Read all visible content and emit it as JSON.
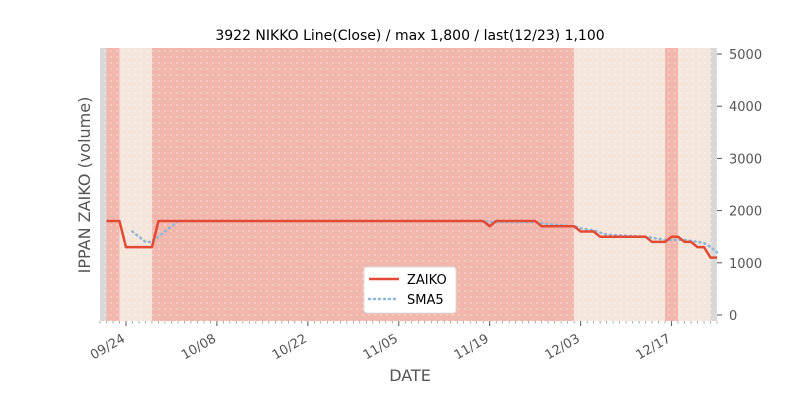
{
  "chart_data": {
    "type": "line",
    "title": "3922 NIKKO Line(Close) / max 1,800 / last(12/23) 1,100",
    "xlabel": "DATE",
    "ylabel": "IPPAN ZAIKO (volume)",
    "ylim": [
      0,
      5000
    ],
    "yticks": [
      "0",
      "1000",
      "2000",
      "3000",
      "4000",
      "5000"
    ],
    "y_axis_side": "right",
    "x_range": [
      "09/20",
      "12/24"
    ],
    "xticks": [
      "09/24",
      "10/08",
      "10/22",
      "11/05",
      "11/19",
      "12/03",
      "12/17"
    ],
    "grid": false,
    "legend_position": "bottom-center",
    "colors": {
      "zaiko": "#e24a33",
      "sma5": "#8eb6d9",
      "band_strong": "#f2b7ac",
      "band_light": "#f5e6dc",
      "band_gray": "#d8d8d8"
    },
    "series": [
      {
        "name": "ZAIKO",
        "style": "solid",
        "points": [
          [
            "09/21",
            1800
          ],
          [
            "09/23",
            1800
          ],
          [
            "09/24",
            1300
          ],
          [
            "09/25",
            1300
          ],
          [
            "09/26",
            1300
          ],
          [
            "09/27",
            1300
          ],
          [
            "09/28",
            1300
          ],
          [
            "09/29",
            1800
          ],
          [
            "10/01",
            1800
          ],
          [
            "10/15",
            1800
          ],
          [
            "11/01",
            1800
          ],
          [
            "11/15",
            1800
          ],
          [
            "11/18",
            1800
          ],
          [
            "11/19",
            1700
          ],
          [
            "11/20",
            1800
          ],
          [
            "11/26",
            1800
          ],
          [
            "11/27",
            1700
          ],
          [
            "11/28",
            1700
          ],
          [
            "12/02",
            1700
          ],
          [
            "12/03",
            1600
          ],
          [
            "12/05",
            1600
          ],
          [
            "12/06",
            1500
          ],
          [
            "12/07",
            1500
          ],
          [
            "12/13",
            1500
          ],
          [
            "12/14",
            1400
          ],
          [
            "12/15",
            1400
          ],
          [
            "12/16",
            1400
          ],
          [
            "12/17",
            1500
          ],
          [
            "12/18",
            1500
          ],
          [
            "12/19",
            1400
          ],
          [
            "12/20",
            1400
          ],
          [
            "12/21",
            1300
          ],
          [
            "12/22",
            1300
          ],
          [
            "12/23",
            1100
          ],
          [
            "12/24",
            1100
          ]
        ]
      },
      {
        "name": "SMA5",
        "style": "dotted",
        "points": [
          [
            "09/25",
            1600
          ],
          [
            "09/26",
            1500
          ],
          [
            "09/27",
            1400
          ],
          [
            "09/28",
            1400
          ],
          [
            "09/29",
            1500
          ],
          [
            "09/30",
            1600
          ],
          [
            "10/01",
            1700
          ],
          [
            "10/02",
            1800
          ],
          [
            "10/15",
            1800
          ],
          [
            "11/01",
            1800
          ],
          [
            "11/18",
            1800
          ],
          [
            "11/19",
            1780
          ],
          [
            "11/26",
            1780
          ],
          [
            "11/27",
            1760
          ],
          [
            "11/28",
            1740
          ],
          [
            "12/02",
            1700
          ],
          [
            "12/03",
            1660
          ],
          [
            "12/05",
            1620
          ],
          [
            "12/06",
            1580
          ],
          [
            "12/07",
            1540
          ],
          [
            "12/13",
            1500
          ],
          [
            "12/14",
            1480
          ],
          [
            "12/15",
            1460
          ],
          [
            "12/16",
            1440
          ],
          [
            "12/17",
            1440
          ],
          [
            "12/18",
            1440
          ],
          [
            "12/19",
            1440
          ],
          [
            "12/20",
            1420
          ],
          [
            "12/21",
            1400
          ],
          [
            "12/22",
            1380
          ],
          [
            "12/23",
            1300
          ],
          [
            "12/24",
            1200
          ]
        ]
      }
    ],
    "background_bands": [
      {
        "start": "09/20",
        "end": "09/21",
        "color": "band_gray"
      },
      {
        "start": "09/21",
        "end": "09/23",
        "color": "band_strong"
      },
      {
        "start": "09/23",
        "end": "09/28",
        "color": "band_light"
      },
      {
        "start": "09/28",
        "end": "12/02",
        "color": "band_strong"
      },
      {
        "start": "12/02",
        "end": "12/13",
        "color": "band_light"
      },
      {
        "start": "12/13",
        "end": "12/16",
        "color": "band_light"
      },
      {
        "start": "12/16",
        "end": "12/18",
        "color": "band_strong"
      },
      {
        "start": "12/18",
        "end": "12/23",
        "color": "band_light"
      },
      {
        "start": "12/23",
        "end": "12/24",
        "color": "band_gray"
      }
    ]
  }
}
